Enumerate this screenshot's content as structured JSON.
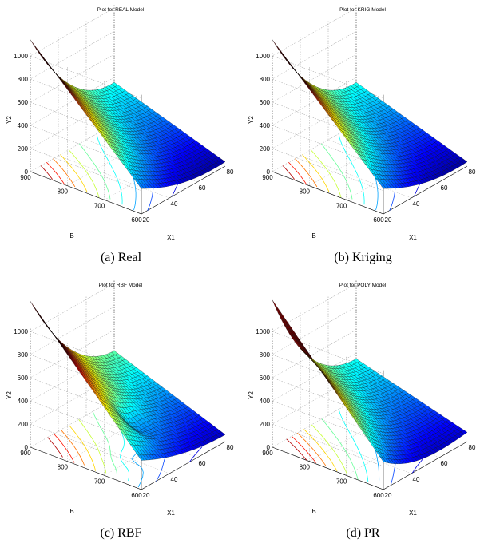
{
  "figure": {
    "panels": [
      {
        "title": "Plot for REAL Model",
        "caption": "(a) Real",
        "model": "real"
      },
      {
        "title": "Plot for KRIG Model",
        "caption": "(b) Kriging",
        "model": "krig"
      },
      {
        "title": "Plot for RBF Model",
        "caption": "(c) RBF",
        "model": "rbf"
      },
      {
        "title": "Plot for POLY Model",
        "caption": "(d) PR",
        "model": "poly"
      }
    ]
  },
  "chart_data": [
    {
      "type": "surface3d",
      "title": "Plot for REAL Model",
      "xlabel": "X1",
      "ylabel": "B",
      "zlabel": "Y2",
      "xticks": [
        "20",
        "40",
        "60",
        "80"
      ],
      "yticks": [
        "600",
        "700",
        "800",
        "900"
      ],
      "zticks": [
        "0",
        "200",
        "400",
        "600",
        "800",
        "1000"
      ],
      "xlim": [
        20,
        80
      ],
      "ylim": [
        600,
        900
      ],
      "zlim": [
        0,
        1000
      ],
      "x": [
        20,
        80
      ],
      "y": [
        600,
        900
      ],
      "corner_z": {
        "x20_b900": 840,
        "x80_b900": 430,
        "x20_b600": 360,
        "x80_b600": 40
      },
      "contours": true
    },
    {
      "type": "surface3d",
      "title": "Plot for KRIG Model",
      "xlabel": "X1",
      "ylabel": "B",
      "zlabel": "Y2",
      "xticks": [
        "20",
        "40",
        "60",
        "80"
      ],
      "yticks": [
        "600",
        "700",
        "800",
        "900"
      ],
      "zticks": [
        "0",
        "200",
        "400",
        "600",
        "800",
        "1000"
      ],
      "xlim": [
        20,
        80
      ],
      "ylim": [
        600,
        900
      ],
      "zlim": [
        0,
        1000
      ],
      "x": [
        20,
        80
      ],
      "y": [
        600,
        900
      ],
      "corner_z": {
        "x20_b900": 840,
        "x80_b900": 430,
        "x20_b600": 360,
        "x80_b600": 40
      },
      "contours": true
    },
    {
      "type": "surface3d",
      "title": "Plot for RBF Model",
      "xlabel": "X1",
      "ylabel": "B",
      "zlabel": "Y2",
      "xticks": [
        "20",
        "40",
        "60",
        "80"
      ],
      "yticks": [
        "600",
        "700",
        "800",
        "900"
      ],
      "zticks": [
        "0",
        "200",
        "400",
        "600",
        "800",
        "1000"
      ],
      "xlim": [
        20,
        80
      ],
      "ylim": [
        600,
        900
      ],
      "zlim": [
        0,
        1000
      ],
      "x": [
        20,
        80
      ],
      "y": [
        600,
        900
      ],
      "corner_z": {
        "x20_b900": 900,
        "x80_b900": 470,
        "x20_b600": 420,
        "x80_b600": 60
      },
      "contours": true
    },
    {
      "type": "surface3d",
      "title": "Plot for POLY Model",
      "xlabel": "X1",
      "ylabel": "B",
      "zlabel": "Y2",
      "xticks": [
        "20",
        "40",
        "60",
        "80"
      ],
      "yticks": [
        "600",
        "700",
        "800",
        "900"
      ],
      "zticks": [
        "0",
        "200",
        "400",
        "600",
        "800",
        "1000"
      ],
      "xlim": [
        20,
        80
      ],
      "ylim": [
        600,
        900
      ],
      "zlim": [
        0,
        1000
      ],
      "x": [
        20,
        80
      ],
      "y": [
        600,
        900
      ],
      "corner_z": {
        "x20_b900": 960,
        "x80_b900": 440,
        "x20_b600": 380,
        "x80_b600": 30
      },
      "contours": true
    }
  ]
}
